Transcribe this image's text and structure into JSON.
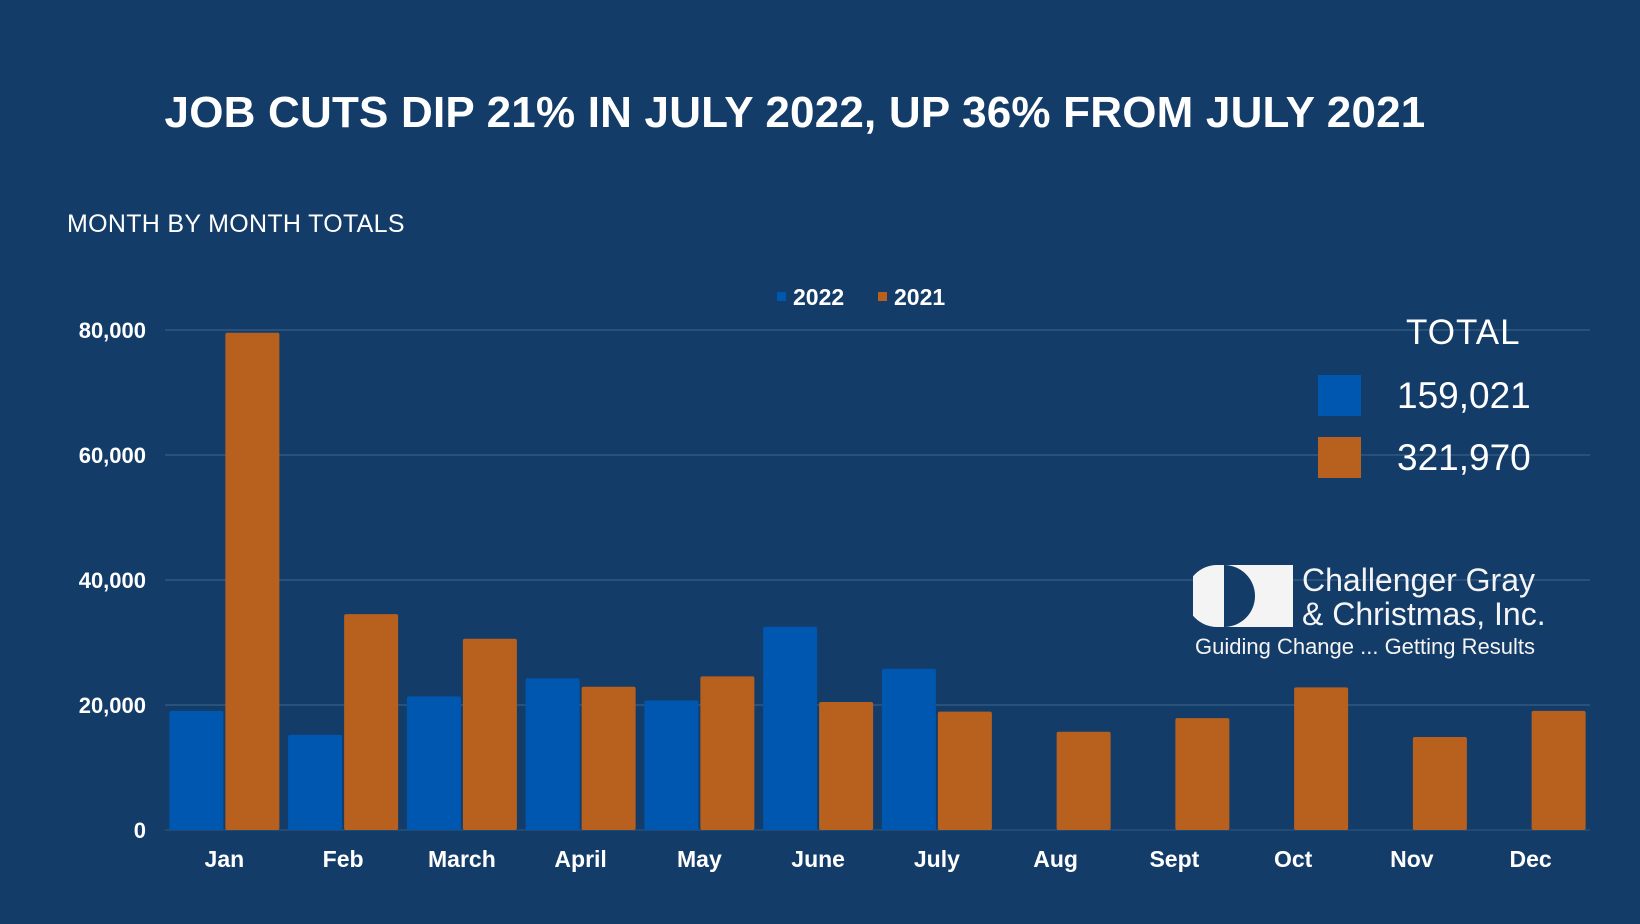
{
  "chart_data": {
    "type": "bar",
    "title": "JOB CUTS DIP 21% IN JULY 2022, UP 36% FROM JULY 2021",
    "subtitle": "MONTH BY MONTH TOTALS",
    "categories": [
      "Jan",
      "Feb",
      "March",
      "April",
      "May",
      "June",
      "July",
      "Aug",
      "Sept",
      "Oct",
      "Nov",
      "Dec"
    ],
    "series": [
      {
        "name": "2022",
        "color": "#0057b0",
        "values": [
          19064,
          15245,
          21387,
          24286,
          20712,
          32517,
          25810,
          null,
          null,
          null,
          null,
          null
        ]
      },
      {
        "name": "2021",
        "color": "#b8611f",
        "values": [
          79552,
          34531,
          30603,
          22913,
          24586,
          20476,
          18942,
          15723,
          17895,
          22822,
          14875,
          19052
        ]
      }
    ],
    "yticks": [
      0,
      20000,
      40000,
      60000,
      80000
    ],
    "ytick_labels": [
      "0",
      "20,000",
      "40,000",
      "60,000",
      "80,000"
    ],
    "ylim": [
      0,
      80000
    ],
    "xlabel": "",
    "ylabel": "",
    "grid": true,
    "legend_position": "top-center"
  },
  "totals": {
    "title": "TOTAL",
    "items": [
      {
        "series": "2022",
        "value": "159,021",
        "color": "#0057b0"
      },
      {
        "series": "2021",
        "value": "321,970",
        "color": "#b8611f"
      }
    ]
  },
  "logo": {
    "name_line1": "Challenger Gray",
    "name_line2": "& Christmas, Inc.",
    "tagline": "Guiding Change ... Getting Results"
  },
  "colors": {
    "background": "#133c68",
    "gridline": "#3e6690",
    "series_2022": "#0057b0",
    "series_2021": "#b8611f"
  }
}
